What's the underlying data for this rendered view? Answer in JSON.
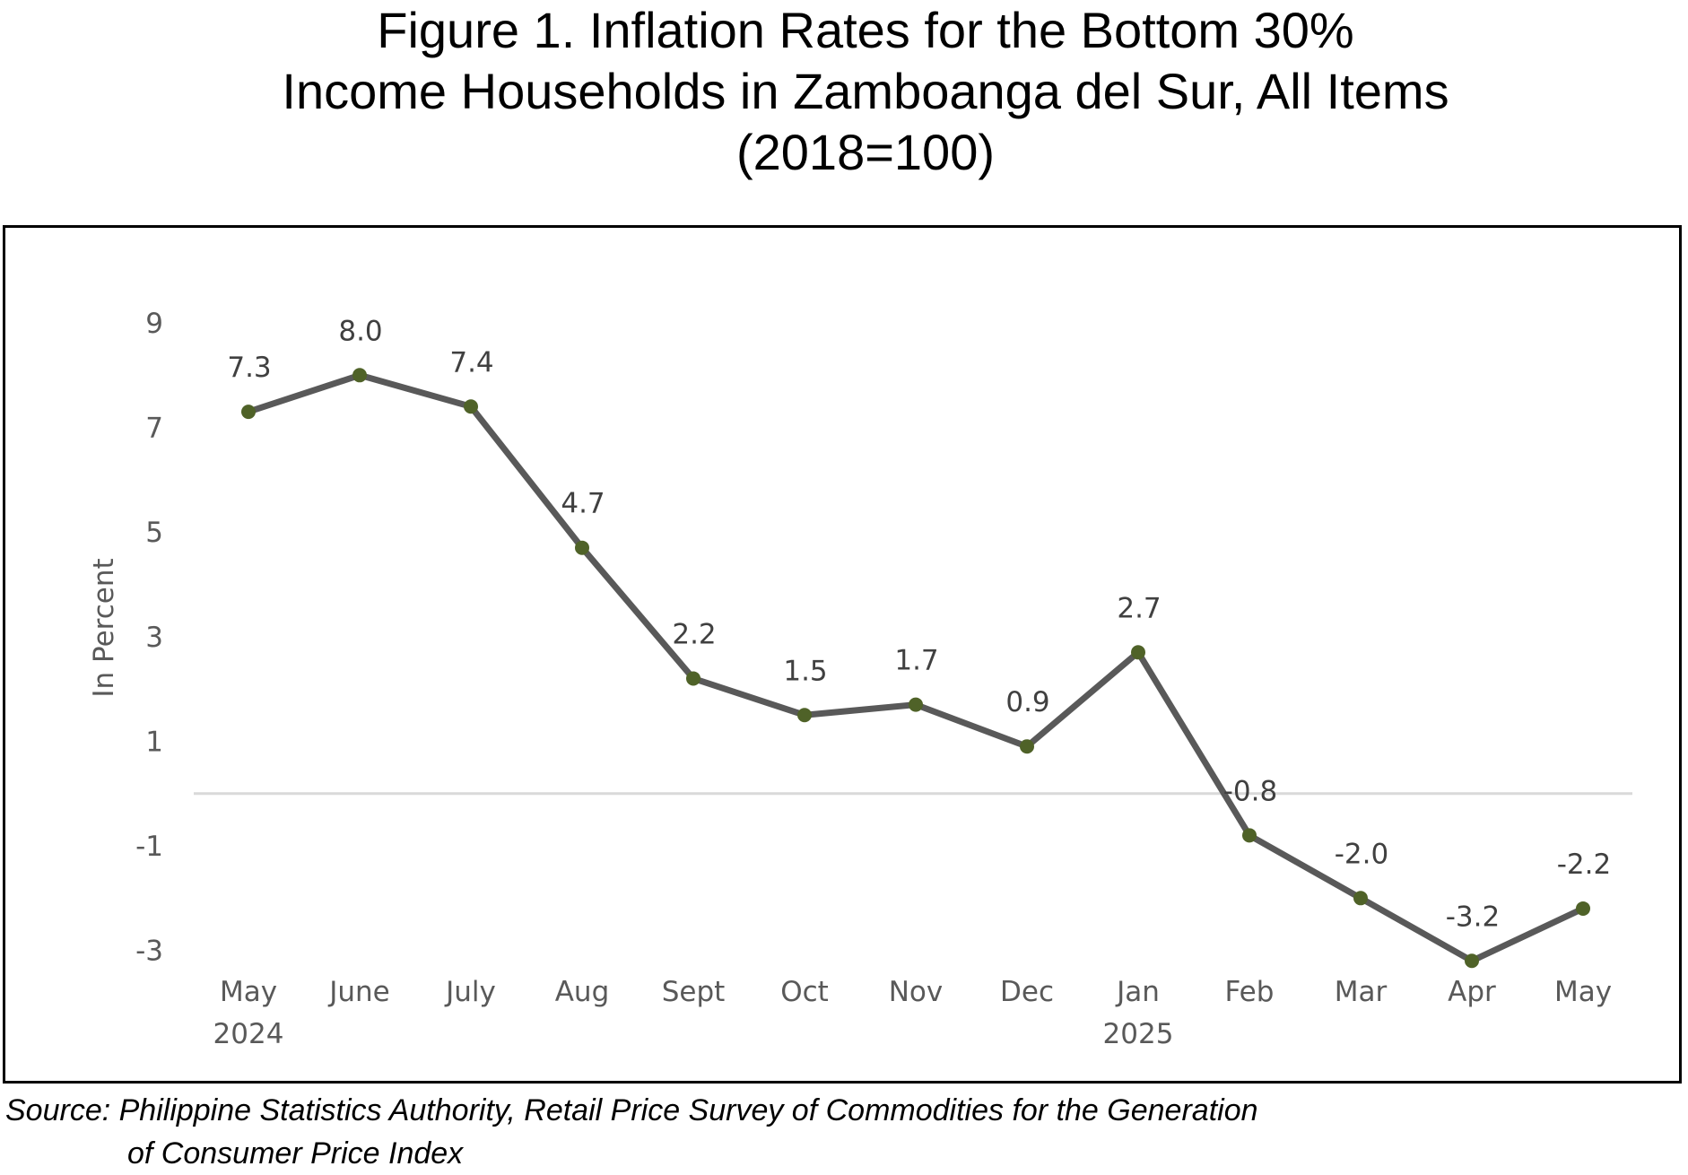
{
  "chart_data": {
    "type": "line",
    "title": [
      "Figure 1. Inflation Rates for the Bottom 30%",
      "Income Households in Zamboanga del Sur, All Items",
      "(2018=100)"
    ],
    "ylabel": "In Percent",
    "xlabel": "",
    "categories": [
      {
        "month": "May",
        "year": "2024"
      },
      {
        "month": "June",
        "year": ""
      },
      {
        "month": "July",
        "year": ""
      },
      {
        "month": "Aug",
        "year": ""
      },
      {
        "month": "Sept",
        "year": ""
      },
      {
        "month": "Oct",
        "year": ""
      },
      {
        "month": "Nov",
        "year": ""
      },
      {
        "month": "Dec",
        "year": ""
      },
      {
        "month": "Jan",
        "year": "2025"
      },
      {
        "month": "Feb",
        "year": ""
      },
      {
        "month": "Mar",
        "year": ""
      },
      {
        "month": "Apr",
        "year": ""
      },
      {
        "month": "May",
        "year": ""
      }
    ],
    "series": [
      {
        "values": [
          7.3,
          8.0,
          7.4,
          4.7,
          2.2,
          1.5,
          1.7,
          0.9,
          2.7,
          -0.8,
          -2.0,
          -3.2,
          -2.2
        ],
        "labels": [
          "7.3",
          "8.0",
          "7.4",
          "4.7",
          "2.2",
          "1.5",
          "1.7",
          "0.9",
          "2.7",
          "-0.8",
          "-2.0",
          "-3.2",
          "-2.2"
        ],
        "line_color": "#595959",
        "marker_color": "#4f6228"
      }
    ],
    "yticks": [
      "9",
      "7",
      "5",
      "3",
      "1",
      "-1",
      "-3"
    ],
    "ytick_values": [
      9,
      7,
      5,
      3,
      1,
      -1,
      -3
    ],
    "ylim": [
      -3,
      9
    ],
    "grid": false,
    "zero_line": true,
    "legend": "none"
  },
  "source": {
    "line1": "Source: Philippine Statistics Authority, Retail Price Survey of Commodities for the Generation",
    "line2": "of Consumer Price Index"
  }
}
